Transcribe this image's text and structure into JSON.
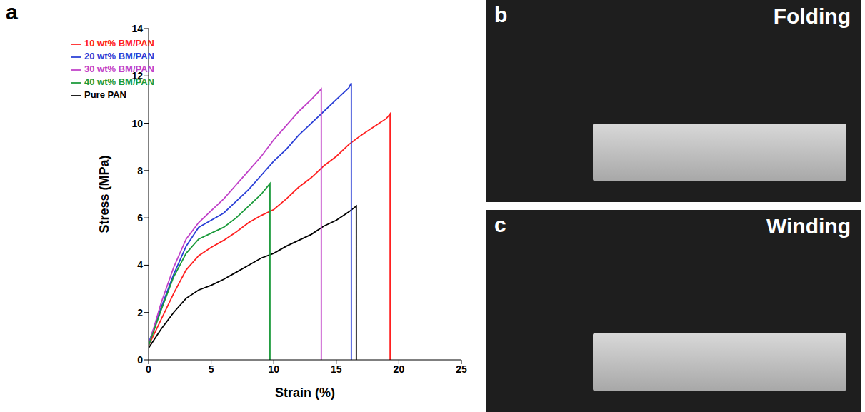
{
  "chart_data": {
    "type": "line",
    "panel": "a",
    "xlabel": "Strain (%)",
    "ylabel": "Stress (MPa)",
    "xlim": [
      0,
      25
    ],
    "xticks": [
      0,
      5,
      10,
      15,
      20,
      25
    ],
    "ylim": [
      0,
      14
    ],
    "yticks": [
      0,
      2,
      4,
      6,
      8,
      10,
      12,
      14
    ],
    "legend": "upper left",
    "grid": false,
    "series": [
      {
        "name": "Pure PAN",
        "color": "#000000",
        "x": [
          0,
          1,
          2,
          3,
          4,
          5,
          6,
          7,
          8,
          9,
          10,
          11,
          12,
          13,
          14,
          15,
          16,
          16.6,
          16.6
        ],
        "values": [
          0.5,
          1.3,
          2.0,
          2.6,
          2.95,
          3.15,
          3.4,
          3.7,
          4.0,
          4.3,
          4.5,
          4.8,
          5.05,
          5.3,
          5.65,
          5.9,
          6.25,
          6.5,
          0
        ]
      },
      {
        "name": "10 wt% BM/PAN",
        "color": "#ff2020",
        "x": [
          0,
          1,
          2,
          3,
          4,
          5,
          6,
          7,
          8,
          9,
          10,
          11,
          12,
          13,
          14,
          15,
          16,
          17,
          18,
          19,
          19.3,
          19.3
        ],
        "values": [
          0.6,
          1.7,
          2.8,
          3.8,
          4.4,
          4.75,
          5.05,
          5.4,
          5.8,
          6.1,
          6.35,
          6.8,
          7.3,
          7.7,
          8.2,
          8.6,
          9.1,
          9.5,
          9.85,
          10.2,
          10.4,
          0
        ]
      },
      {
        "name": "20 wt% BM/PAN",
        "color": "#2a3fd6",
        "x": [
          0,
          1,
          2,
          3,
          4,
          5,
          6,
          7,
          8,
          9,
          10,
          11,
          12,
          13,
          14,
          15,
          16,
          16.2,
          16.2
        ],
        "values": [
          0.7,
          2.2,
          3.6,
          4.8,
          5.6,
          5.9,
          6.2,
          6.7,
          7.2,
          7.8,
          8.4,
          8.9,
          9.5,
          10.0,
          10.5,
          11.0,
          11.5,
          11.7,
          0
        ]
      },
      {
        "name": "30 wt% BM/PAN",
        "color": "#c040c8",
        "x": [
          0,
          1,
          2,
          3,
          4,
          5,
          6,
          7,
          8,
          9,
          10,
          11,
          12,
          13,
          13.8,
          13.8
        ],
        "values": [
          0.6,
          2.4,
          3.9,
          5.1,
          5.8,
          6.3,
          6.8,
          7.4,
          8.0,
          8.6,
          9.3,
          9.9,
          10.5,
          11.0,
          11.45,
          0
        ]
      },
      {
        "name": "40 wt% BM/PAN",
        "color": "#1a9a3a",
        "x": [
          0,
          1,
          2,
          3,
          4,
          5,
          6,
          7,
          8,
          9,
          9.7,
          9.7
        ],
        "values": [
          0.6,
          2.1,
          3.5,
          4.5,
          5.1,
          5.35,
          5.6,
          6.0,
          6.5,
          7.0,
          7.45,
          0
        ]
      }
    ]
  },
  "photos": [
    {
      "panel": "b",
      "label": "Folding"
    },
    {
      "panel": "c",
      "label": "Winding"
    }
  ]
}
